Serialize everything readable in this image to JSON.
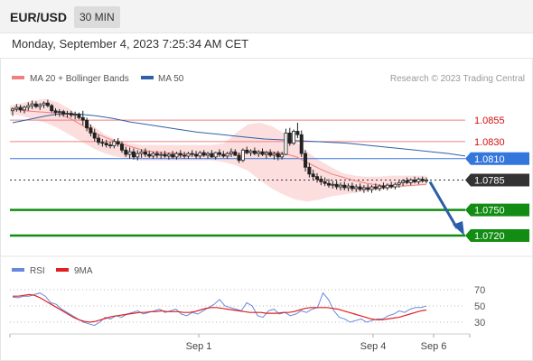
{
  "header": {
    "symbol": "EUR/USD",
    "timeframe": "30 MIN",
    "datetime": "Monday, September 4, 2023 7:25:34 AM CET"
  },
  "legend": {
    "ma20": {
      "label": "MA 20 + Bollinger Bands",
      "color": "#f08080"
    },
    "ma50": {
      "label": "MA 50",
      "color": "#3060a8"
    },
    "copyright": "Research © 2023 Trading Central"
  },
  "rsi_legend": {
    "rsi": {
      "label": "RSI",
      "color": "#6688dd"
    },
    "ma9": {
      "label": "9MA",
      "color": "#e02020"
    }
  },
  "colors": {
    "resistance": "#f08080",
    "support": "#128c12",
    "pivot": "#3377dd",
    "last": "#333333",
    "arrow": "#2a5ea8",
    "up_candle": "#ffffff",
    "down_candle": "#222222",
    "band": "#fcd8d8"
  },
  "chart_data": [
    {
      "type": "candlestick",
      "series": [
        {
          "name": "EUR/USD",
          "values": []
        }
      ],
      "y_range": [
        1.07,
        1.089
      ],
      "levels": [
        {
          "label": "1.0855",
          "value": 1.0855,
          "kind": "resistance"
        },
        {
          "label": "1.0830",
          "value": 1.083,
          "kind": "resistance"
        },
        {
          "label": "1.0810",
          "value": 1.081,
          "kind": "pivot"
        },
        {
          "label": "1.0785",
          "value": 1.0785,
          "kind": "last"
        },
        {
          "label": "1.0750",
          "value": 1.075,
          "kind": "support"
        },
        {
          "label": "1.0720",
          "value": 1.072,
          "kind": "support"
        }
      ],
      "x_ticks": [
        "Sep 1",
        "Sep 4",
        "Sep 6"
      ],
      "forecast": {
        "from": 1.0785,
        "to": 1.072,
        "direction": "down"
      },
      "candles": [
        [
          1.0866,
          1.087,
          1.086,
          1.0868
        ],
        [
          1.0868,
          1.0874,
          1.0865,
          1.087
        ],
        [
          1.087,
          1.0873,
          1.0864,
          1.0867
        ],
        [
          1.0867,
          1.0872,
          1.0863,
          1.087
        ],
        [
          1.087,
          1.0876,
          1.0866,
          1.0872
        ],
        [
          1.0872,
          1.0878,
          1.0868,
          1.0874
        ],
        [
          1.0874,
          1.0877,
          1.0869,
          1.0871
        ],
        [
          1.0871,
          1.0875,
          1.0867,
          1.0873
        ],
        [
          1.0873,
          1.0877,
          1.0869,
          1.0875
        ],
        [
          1.0875,
          1.0879,
          1.087,
          1.0872
        ],
        [
          1.0872,
          1.0874,
          1.0864,
          1.0866
        ],
        [
          1.0866,
          1.0869,
          1.086,
          1.0864
        ],
        [
          1.0864,
          1.0868,
          1.0859,
          1.0865
        ],
        [
          1.0865,
          1.0867,
          1.0859,
          1.0862
        ],
        [
          1.0862,
          1.0866,
          1.0858,
          1.0863
        ],
        [
          1.0863,
          1.0866,
          1.0858,
          1.0861
        ],
        [
          1.0861,
          1.0865,
          1.0856,
          1.0862
        ],
        [
          1.0862,
          1.0864,
          1.0856,
          1.0858
        ],
        [
          1.0858,
          1.0866,
          1.0849,
          1.0855
        ],
        [
          1.0855,
          1.0858,
          1.0842,
          1.0846
        ],
        [
          1.0846,
          1.085,
          1.0836,
          1.084
        ],
        [
          1.084,
          1.0845,
          1.083,
          1.0834
        ],
        [
          1.0834,
          1.0838,
          1.0826,
          1.0829
        ],
        [
          1.0829,
          1.0833,
          1.0824,
          1.0828
        ],
        [
          1.0828,
          1.0832,
          1.0823,
          1.0826
        ],
        [
          1.0826,
          1.083,
          1.0822,
          1.0825
        ],
        [
          1.0825,
          1.0833,
          1.0822,
          1.083
        ],
        [
          1.083,
          1.0834,
          1.0824,
          1.0827
        ],
        [
          1.0827,
          1.083,
          1.0817,
          1.082
        ],
        [
          1.082,
          1.0824,
          1.0812,
          1.0815
        ],
        [
          1.0815,
          1.0823,
          1.081,
          1.0818
        ],
        [
          1.0818,
          1.0822,
          1.0809,
          1.0812
        ],
        [
          1.0812,
          1.082,
          1.0808,
          1.0816
        ],
        [
          1.0816,
          1.0821,
          1.0811,
          1.0818
        ],
        [
          1.0818,
          1.0822,
          1.0812,
          1.0815
        ],
        [
          1.0815,
          1.0819,
          1.0811,
          1.0813
        ],
        [
          1.0813,
          1.0818,
          1.081,
          1.0816
        ],
        [
          1.0816,
          1.0819,
          1.0811,
          1.0814
        ],
        [
          1.0814,
          1.0818,
          1.081,
          1.0815
        ],
        [
          1.0815,
          1.0819,
          1.0811,
          1.0813
        ],
        [
          1.0813,
          1.0817,
          1.0809,
          1.0815
        ],
        [
          1.0815,
          1.0819,
          1.081,
          1.0812
        ],
        [
          1.0812,
          1.0818,
          1.0809,
          1.0816
        ],
        [
          1.0816,
          1.082,
          1.0811,
          1.0814
        ],
        [
          1.0814,
          1.0818,
          1.081,
          1.0813
        ],
        [
          1.0813,
          1.0818,
          1.081,
          1.0816
        ],
        [
          1.0816,
          1.082,
          1.0812,
          1.0815
        ],
        [
          1.0815,
          1.0819,
          1.081,
          1.0813
        ],
        [
          1.0813,
          1.0819,
          1.081,
          1.0817
        ],
        [
          1.0817,
          1.082,
          1.0812,
          1.0814
        ],
        [
          1.0814,
          1.0818,
          1.081,
          1.0816
        ],
        [
          1.0816,
          1.082,
          1.0811,
          1.0812
        ],
        [
          1.0812,
          1.0818,
          1.0809,
          1.0817
        ],
        [
          1.0817,
          1.0821,
          1.0812,
          1.0815
        ],
        [
          1.0815,
          1.0819,
          1.0811,
          1.0813
        ],
        [
          1.0813,
          1.0818,
          1.081,
          1.0816
        ],
        [
          1.0816,
          1.0822,
          1.0812,
          1.0818
        ],
        [
          1.0818,
          1.0821,
          1.0813,
          1.0814
        ],
        [
          1.0814,
          1.0817,
          1.0805,
          1.0808
        ],
        [
          1.0808,
          1.0822,
          1.0806,
          1.082
        ],
        [
          1.082,
          1.0824,
          1.0815,
          1.0817
        ],
        [
          1.0817,
          1.0821,
          1.0813,
          1.0819
        ],
        [
          1.0819,
          1.0823,
          1.0814,
          1.0816
        ],
        [
          1.0816,
          1.082,
          1.0812,
          1.0818
        ],
        [
          1.0818,
          1.0822,
          1.0813,
          1.0815
        ],
        [
          1.0815,
          1.0819,
          1.081,
          1.0817
        ],
        [
          1.0817,
          1.0821,
          1.0812,
          1.0814
        ],
        [
          1.0814,
          1.0818,
          1.0809,
          1.0816
        ],
        [
          1.0816,
          1.0819,
          1.0808,
          1.0812
        ],
        [
          1.0812,
          1.0818,
          1.0809,
          1.0815
        ],
        [
          1.0815,
          1.0845,
          1.0814,
          1.084
        ],
        [
          1.084,
          1.0846,
          1.0825,
          1.0828
        ],
        [
          1.0828,
          1.0844,
          1.0826,
          1.0842
        ],
        [
          1.0842,
          1.0852,
          1.0834,
          1.0838
        ],
        [
          1.0838,
          1.0843,
          1.0812,
          1.0816
        ],
        [
          1.0816,
          1.082,
          1.0795,
          1.08
        ],
        [
          1.08,
          1.0805,
          1.0788,
          1.0792
        ],
        [
          1.0792,
          1.0797,
          1.0785,
          1.0789
        ],
        [
          1.0789,
          1.0793,
          1.0782,
          1.0786
        ],
        [
          1.0786,
          1.079,
          1.0779,
          1.0783
        ],
        [
          1.0783,
          1.0788,
          1.0778,
          1.0781
        ],
        [
          1.0781,
          1.0786,
          1.0776,
          1.0779
        ],
        [
          1.0779,
          1.0784,
          1.0775,
          1.078
        ],
        [
          1.078,
          1.0784,
          1.0774,
          1.0777
        ],
        [
          1.0777,
          1.0782,
          1.0773,
          1.0779
        ],
        [
          1.0779,
          1.0783,
          1.0773,
          1.0776
        ],
        [
          1.0776,
          1.0781,
          1.0772,
          1.0778
        ],
        [
          1.0778,
          1.0782,
          1.0772,
          1.0775
        ],
        [
          1.0775,
          1.078,
          1.0771,
          1.0777
        ],
        [
          1.0777,
          1.0781,
          1.0772,
          1.0774
        ],
        [
          1.0774,
          1.0779,
          1.077,
          1.0776
        ],
        [
          1.0776,
          1.078,
          1.0771,
          1.0774
        ],
        [
          1.0774,
          1.0779,
          1.077,
          1.0777
        ],
        [
          1.0777,
          1.0781,
          1.0773,
          1.0775
        ],
        [
          1.0775,
          1.078,
          1.0772,
          1.0778
        ],
        [
          1.0778,
          1.0782,
          1.0774,
          1.0776
        ],
        [
          1.0776,
          1.0781,
          1.0773,
          1.0779
        ],
        [
          1.0779,
          1.0783,
          1.0775,
          1.0777
        ],
        [
          1.0777,
          1.0782,
          1.0774,
          1.078
        ],
        [
          1.078,
          1.0784,
          1.0776,
          1.0782
        ],
        [
          1.0782,
          1.0786,
          1.0778,
          1.0784
        ],
        [
          1.0784,
          1.0788,
          1.078,
          1.0782
        ],
        [
          1.0782,
          1.0787,
          1.0779,
          1.0785
        ],
        [
          1.0785,
          1.0789,
          1.0781,
          1.0783
        ],
        [
          1.0783,
          1.0788,
          1.078,
          1.0786
        ],
        [
          1.0786,
          1.0789,
          1.0782,
          1.0784
        ],
        [
          1.0784,
          1.0788,
          1.0781,
          1.0785
        ]
      ],
      "ma20": [
        1.0868,
        1.0866,
        1.0865,
        1.0864,
        1.0862,
        1.0856,
        1.0848,
        1.084,
        1.0834,
        1.0828,
        1.0824,
        1.082,
        1.0818,
        1.0817,
        1.0816,
        1.0815,
        1.0815,
        1.0815,
        1.0815,
        1.0816,
        1.0817,
        1.0818,
        1.0818,
        1.0816,
        1.0812,
        1.0805,
        1.0798,
        1.0792,
        1.0788,
        1.0784,
        1.0781,
        1.0779,
        1.0778,
        1.0778,
        1.0779,
        1.078
      ],
      "ma50": [
        1.0852,
        1.0856,
        1.086,
        1.0863,
        1.0862,
        1.086,
        1.0857,
        1.0853,
        1.085,
        1.0847,
        1.0844,
        1.0841,
        1.0839,
        1.0837,
        1.0835,
        1.0833,
        1.0832,
        1.0831,
        1.083,
        1.0829,
        1.0828,
        1.0826,
        1.0824,
        1.0822,
        1.082,
        1.0818,
        1.0816,
        1.0813
      ],
      "band_upper": [
        1.0872,
        1.0875,
        1.0878,
        1.088,
        1.0876,
        1.0868,
        1.0858,
        1.0848,
        1.0838,
        1.0832,
        1.0828,
        1.0826,
        1.0826,
        1.0826,
        1.0826,
        1.0826,
        1.0826,
        1.0826,
        1.0828,
        1.084,
        1.085,
        1.0852,
        1.0848,
        1.084,
        1.083,
        1.0818,
        1.0808,
        1.08,
        1.0793,
        1.079,
        1.0789,
        1.0789,
        1.079,
        1.079,
        1.079,
        1.079
      ],
      "band_lower": [
        1.0862,
        1.086,
        1.0856,
        1.0852,
        1.0846,
        1.0838,
        1.083,
        1.0822,
        1.0816,
        1.0812,
        1.081,
        1.0808,
        1.0808,
        1.0808,
        1.0808,
        1.0808,
        1.0808,
        1.0808,
        1.0806,
        1.0802,
        1.0796,
        1.0785,
        1.0775,
        1.0768,
        1.0762,
        1.076,
        1.0762,
        1.0766,
        1.0768,
        1.077,
        1.0772,
        1.0773,
        1.0775,
        1.0777,
        1.0778,
        1.0779
      ]
    },
    {
      "type": "line",
      "series": [
        {
          "name": "RSI",
          "values": [
            61,
            60,
            62,
            62,
            64,
            66,
            62,
            54,
            52,
            46,
            42,
            38,
            34,
            30,
            28,
            26,
            30,
            36,
            34,
            38,
            36,
            40,
            42,
            44,
            40,
            42,
            44,
            46,
            42,
            44,
            46,
            40,
            38,
            42,
            40,
            44,
            48,
            52,
            58,
            50,
            48,
            46,
            44,
            54,
            50,
            38,
            36,
            44,
            46,
            40,
            42,
            38,
            40,
            44,
            42,
            46,
            48,
            66,
            58,
            44,
            36,
            34,
            30,
            32,
            34,
            30,
            32,
            34,
            34,
            38,
            40,
            44,
            42,
            46,
            48,
            48,
            50
          ]
        },
        {
          "name": "9MA",
          "values": [
            62,
            62,
            63,
            64,
            63,
            60,
            56,
            52,
            48,
            44,
            40,
            36,
            33,
            31,
            30,
            31,
            33,
            35,
            37,
            38,
            39,
            40,
            41,
            42,
            42,
            43,
            43,
            44,
            43,
            43,
            43,
            42,
            42,
            43,
            45,
            47,
            48,
            48,
            47,
            46,
            45,
            44,
            43,
            42,
            42,
            42,
            41,
            41,
            41,
            42,
            42,
            43,
            45,
            47,
            48,
            48,
            48,
            48,
            47,
            46,
            44,
            42,
            40,
            38,
            36,
            34,
            33,
            33,
            34,
            35,
            36,
            38,
            40,
            42,
            44,
            45
          ]
        }
      ],
      "y_ticks": [
        "70",
        "50",
        "30"
      ]
    }
  ]
}
